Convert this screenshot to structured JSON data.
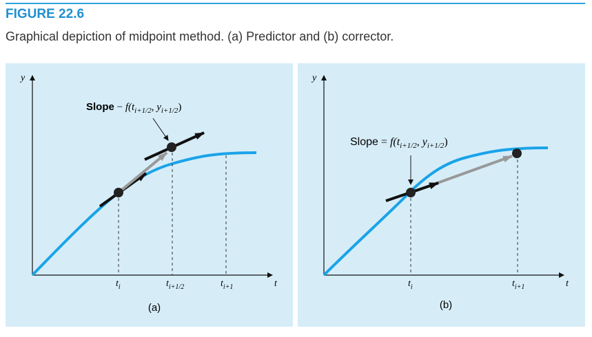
{
  "header": {
    "figure_label": "FIGURE 22.6",
    "caption": "Graphical depiction of midpoint method. (a) Predictor and (b) corrector."
  },
  "panels": [
    {
      "y_axis": "y",
      "t_axis": "t",
      "ticks": [
        {
          "base": "t",
          "sub": "i"
        },
        {
          "base": "t",
          "sub": "i+1/2"
        },
        {
          "base": "t",
          "sub": "i+1"
        }
      ],
      "slope": {
        "prefix": "Slope",
        "op": "−",
        "f": "f(t",
        "sub1": "i+1/2",
        "mid": ", y",
        "sub2": "i+1/2",
        "end": ")"
      },
      "label": "(a)"
    },
    {
      "y_axis": "y",
      "t_axis": "t",
      "ticks": [
        {
          "base": "t",
          "sub": "i"
        },
        {
          "base": "t",
          "sub": "i+1"
        }
      ],
      "slope": {
        "prefix": "Slope",
        "op": "=",
        "f": "f(t",
        "sub1": "i+1/2",
        "mid": ", y",
        "sub2": "i+1/2",
        "end": ")"
      },
      "label": "(b)"
    }
  ]
}
